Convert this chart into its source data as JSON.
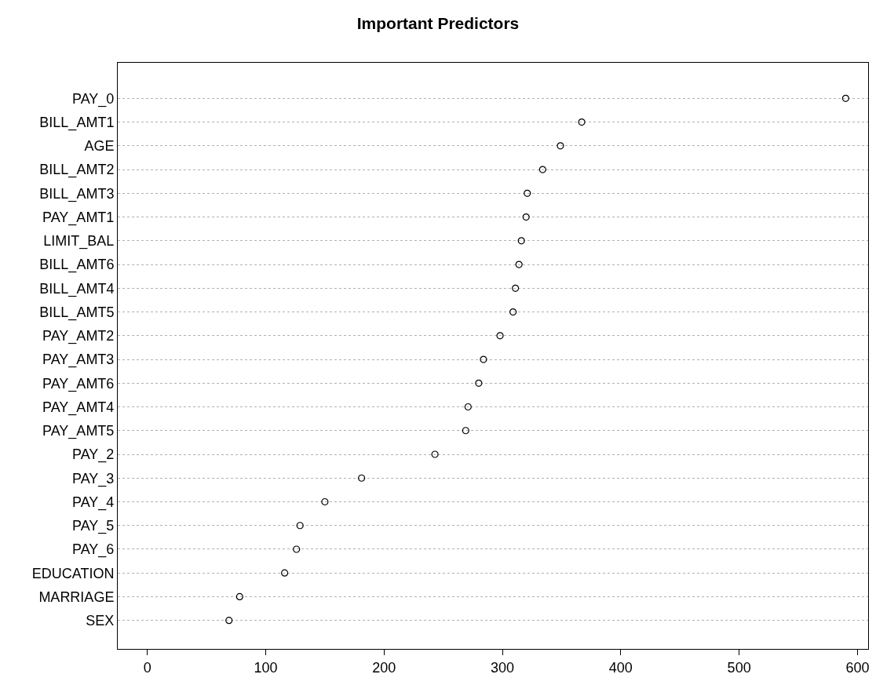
{
  "chart_data": {
    "type": "scatter",
    "title": "Important Predictors",
    "categories": [
      "PAY_0",
      "BILL_AMT1",
      "AGE",
      "BILL_AMT2",
      "BILL_AMT3",
      "PAY_AMT1",
      "LIMIT_BAL",
      "BILL_AMT6",
      "BILL_AMT4",
      "BILL_AMT5",
      "PAY_AMT2",
      "PAY_AMT3",
      "PAY_AMT6",
      "PAY_AMT4",
      "PAY_AMT5",
      "PAY_2",
      "PAY_3",
      "PAY_4",
      "PAY_5",
      "PAY_6",
      "EDUCATION",
      "MARRIAGE",
      "SEX"
    ],
    "orientation": "horizontal",
    "series": [
      {
        "color": "#000000",
        "values": [
          590,
          367,
          349,
          334,
          321,
          320,
          316,
          314,
          311,
          309,
          298,
          284,
          280,
          271,
          269,
          243,
          181,
          150,
          129,
          126,
          116,
          78,
          69
        ]
      }
    ],
    "xlim": [
      -25,
      609
    ],
    "xticks": [
      0,
      100,
      200,
      300,
      400,
      500,
      600
    ],
    "grid": "y",
    "marker": "circle"
  }
}
